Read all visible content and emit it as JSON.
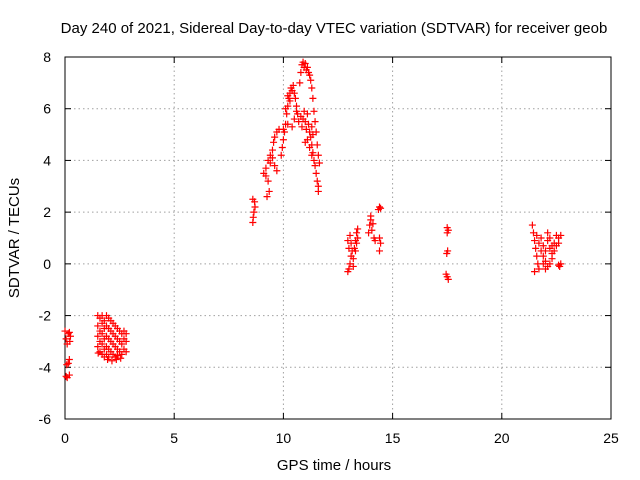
{
  "chart_data": {
    "type": "scatter",
    "title": "Day 240 of 2021, Sidereal Day-to-day VTEC variation (SDTVAR) for receiver geob",
    "xlabel": "GPS time / hours",
    "ylabel": "SDTVAR / TECUs",
    "xlim": [
      0,
      25
    ],
    "ylim": [
      -6,
      8
    ],
    "xticks": [
      0,
      5,
      10,
      15,
      20,
      25
    ],
    "yticks": [
      -6,
      -4,
      -2,
      0,
      2,
      4,
      6,
      8
    ],
    "grid": true,
    "marker": "+",
    "series": [
      {
        "color": "#ff0000",
        "points": [
          [
            0.0,
            -2.6
          ],
          [
            0.05,
            -2.9
          ],
          [
            0.1,
            -3.1
          ],
          [
            0.15,
            -2.7
          ],
          [
            0.2,
            -2.65
          ],
          [
            0.22,
            -3.0
          ],
          [
            0.25,
            -2.8
          ],
          [
            0.08,
            -3.9
          ],
          [
            0.15,
            -3.85
          ],
          [
            0.2,
            -3.7
          ],
          [
            0.05,
            -4.35
          ],
          [
            0.1,
            -4.4
          ],
          [
            0.2,
            -4.3
          ],
          [
            1.5,
            -2.0
          ],
          [
            1.5,
            -2.4
          ],
          [
            1.5,
            -2.8
          ],
          [
            1.5,
            -3.2
          ],
          [
            1.52,
            -3.45
          ],
          [
            1.6,
            -2.1
          ],
          [
            1.6,
            -2.6
          ],
          [
            1.6,
            -3.0
          ],
          [
            1.6,
            -3.4
          ],
          [
            1.7,
            -2.0
          ],
          [
            1.7,
            -2.3
          ],
          [
            1.7,
            -2.7
          ],
          [
            1.7,
            -3.1
          ],
          [
            1.7,
            -3.5
          ],
          [
            1.8,
            -2.2
          ],
          [
            1.8,
            -2.5
          ],
          [
            1.8,
            -2.9
          ],
          [
            1.8,
            -3.3
          ],
          [
            1.8,
            -3.6
          ],
          [
            1.9,
            -2.0
          ],
          [
            1.9,
            -2.4
          ],
          [
            1.9,
            -2.8
          ],
          [
            1.9,
            -3.2
          ],
          [
            1.9,
            -3.5
          ],
          [
            2.0,
            -2.1
          ],
          [
            2.0,
            -2.5
          ],
          [
            2.0,
            -2.9
          ],
          [
            2.0,
            -3.3
          ],
          [
            2.0,
            -3.6
          ],
          [
            2.1,
            -2.2
          ],
          [
            2.1,
            -2.6
          ],
          [
            2.1,
            -3.0
          ],
          [
            2.1,
            -3.4
          ],
          [
            2.2,
            -2.3
          ],
          [
            2.2,
            -2.7
          ],
          [
            2.2,
            -3.1
          ],
          [
            2.2,
            -3.5
          ],
          [
            2.3,
            -2.4
          ],
          [
            2.3,
            -2.8
          ],
          [
            2.3,
            -3.2
          ],
          [
            2.3,
            -3.6
          ],
          [
            2.4,
            -2.5
          ],
          [
            2.4,
            -2.9
          ],
          [
            2.4,
            -3.3
          ],
          [
            2.4,
            -3.55
          ],
          [
            2.5,
            -2.6
          ],
          [
            2.5,
            -3.0
          ],
          [
            2.5,
            -3.4
          ],
          [
            2.6,
            -2.7
          ],
          [
            2.6,
            -3.1
          ],
          [
            2.6,
            -3.5
          ],
          [
            2.7,
            -2.6
          ],
          [
            2.7,
            -2.9
          ],
          [
            2.7,
            -3.3
          ],
          [
            2.8,
            -2.7
          ],
          [
            2.8,
            -3.0
          ],
          [
            2.8,
            -3.4
          ],
          [
            1.95,
            -3.7
          ],
          [
            2.15,
            -3.75
          ],
          [
            2.35,
            -3.7
          ],
          [
            2.55,
            -3.65
          ],
          [
            8.6,
            1.6
          ],
          [
            8.62,
            1.8
          ],
          [
            8.65,
            2.0
          ],
          [
            8.7,
            2.2
          ],
          [
            8.68,
            2.4
          ],
          [
            8.6,
            2.5
          ],
          [
            9.1,
            3.5
          ],
          [
            9.2,
            3.4
          ],
          [
            9.3,
            3.2
          ],
          [
            9.35,
            2.8
          ],
          [
            9.25,
            2.6
          ],
          [
            9.2,
            3.7
          ],
          [
            9.3,
            4.0
          ],
          [
            9.4,
            4.2
          ],
          [
            9.5,
            4.4
          ],
          [
            9.55,
            4.7
          ],
          [
            9.6,
            4.9
          ],
          [
            9.7,
            5.1
          ],
          [
            9.8,
            5.2
          ],
          [
            9.4,
            3.9
          ],
          [
            9.5,
            4.1
          ],
          [
            9.6,
            3.8
          ],
          [
            9.7,
            3.6
          ],
          [
            9.9,
            4.2
          ],
          [
            9.95,
            4.5
          ],
          [
            10.0,
            4.8
          ],
          [
            10.05,
            5.1
          ],
          [
            10.1,
            5.4
          ],
          [
            10.15,
            5.8
          ],
          [
            10.2,
            6.1
          ],
          [
            10.25,
            6.4
          ],
          [
            10.3,
            6.6
          ],
          [
            10.35,
            6.8
          ],
          [
            10.1,
            6.0
          ],
          [
            10.2,
            6.5
          ],
          [
            10.3,
            6.3
          ],
          [
            10.4,
            6.7
          ],
          [
            10.45,
            6.9
          ],
          [
            10.5,
            6.6
          ],
          [
            10.55,
            6.4
          ],
          [
            10.6,
            6.1
          ],
          [
            10.65,
            5.8
          ],
          [
            10.7,
            5.5
          ],
          [
            10.0,
            5.2
          ],
          [
            10.2,
            5.4
          ],
          [
            10.4,
            5.3
          ],
          [
            10.5,
            5.6
          ],
          [
            10.6,
            5.9
          ],
          [
            10.75,
            7.0
          ],
          [
            10.8,
            7.4
          ],
          [
            10.85,
            7.7
          ],
          [
            10.9,
            7.8
          ],
          [
            10.95,
            7.6
          ],
          [
            11.0,
            7.75
          ],
          [
            11.05,
            7.5
          ],
          [
            11.1,
            7.6
          ],
          [
            11.15,
            7.4
          ],
          [
            11.2,
            7.3
          ],
          [
            11.25,
            7.1
          ],
          [
            11.3,
            6.8
          ],
          [
            11.35,
            6.4
          ],
          [
            10.8,
            5.7
          ],
          [
            10.85,
            5.3
          ],
          [
            10.9,
            5.6
          ],
          [
            10.95,
            5.9
          ],
          [
            11.0,
            5.5
          ],
          [
            11.05,
            5.2
          ],
          [
            11.1,
            5.8
          ],
          [
            11.15,
            5.4
          ],
          [
            11.2,
            5.1
          ],
          [
            11.25,
            4.9
          ],
          [
            11.3,
            5.3
          ],
          [
            11.35,
            5.0
          ],
          [
            11.3,
            4.6
          ],
          [
            11.35,
            4.3
          ],
          [
            11.4,
            4.0
          ],
          [
            11.45,
            3.8
          ],
          [
            11.5,
            3.5
          ],
          [
            11.55,
            3.2
          ],
          [
            11.6,
            3.0
          ],
          [
            11.6,
            2.8
          ],
          [
            11.4,
            5.9
          ],
          [
            11.45,
            5.5
          ],
          [
            11.5,
            5.1
          ],
          [
            11.55,
            4.6
          ],
          [
            11.6,
            4.2
          ],
          [
            11.65,
            3.9
          ],
          [
            11.1,
            4.8
          ],
          [
            11.2,
            4.5
          ],
          [
            11.3,
            4.2
          ],
          [
            11.0,
            4.7
          ],
          [
            12.95,
            -0.3
          ],
          [
            13.0,
            -0.2
          ],
          [
            13.05,
            0.0
          ],
          [
            13.1,
            0.3
          ],
          [
            13.0,
            0.6
          ],
          [
            12.95,
            0.9
          ],
          [
            13.05,
            1.1
          ],
          [
            13.1,
            0.8
          ],
          [
            13.15,
            0.5
          ],
          [
            13.2,
            0.2
          ],
          [
            13.25,
            0.6
          ],
          [
            13.3,
            0.9
          ],
          [
            13.35,
            1.2
          ],
          [
            13.4,
            1.35
          ],
          [
            13.3,
            0.5
          ],
          [
            13.35,
            0.8
          ],
          [
            13.4,
            1.0
          ],
          [
            13.2,
            -0.1
          ],
          [
            13.9,
            1.2
          ],
          [
            13.95,
            1.5
          ],
          [
            14.0,
            1.7
          ],
          [
            14.05,
            1.3
          ],
          [
            14.1,
            1.55
          ],
          [
            14.15,
            1.0
          ],
          [
            14.2,
            0.9
          ],
          [
            14.0,
            1.85
          ],
          [
            14.35,
            2.1
          ],
          [
            14.4,
            2.2
          ],
          [
            14.45,
            2.15
          ],
          [
            14.4,
            1.0
          ],
          [
            14.45,
            0.8
          ],
          [
            14.4,
            0.5
          ],
          [
            17.5,
            1.2
          ],
          [
            17.5,
            1.4
          ],
          [
            17.55,
            1.3
          ],
          [
            17.52,
            0.5
          ],
          [
            17.48,
            0.4
          ],
          [
            17.45,
            -0.4
          ],
          [
            17.5,
            -0.5
          ],
          [
            17.55,
            -0.6
          ],
          [
            21.4,
            1.5
          ],
          [
            21.45,
            1.2
          ],
          [
            21.5,
            0.9
          ],
          [
            21.55,
            0.6
          ],
          [
            21.6,
            0.3
          ],
          [
            21.65,
            0.0
          ],
          [
            21.7,
            -0.2
          ],
          [
            21.5,
            -0.3
          ],
          [
            21.6,
            1.1
          ],
          [
            21.7,
            0.8
          ],
          [
            21.8,
            0.5
          ],
          [
            21.9,
            0.3
          ],
          [
            22.0,
            0.1
          ],
          [
            22.1,
            -0.1
          ],
          [
            21.8,
            1.0
          ],
          [
            21.9,
            0.7
          ],
          [
            22.0,
            0.5
          ],
          [
            22.1,
            0.9
          ],
          [
            22.2,
            0.6
          ],
          [
            22.3,
            0.4
          ],
          [
            22.4,
            0.8
          ],
          [
            22.5,
            1.1
          ],
          [
            22.1,
            1.2
          ],
          [
            22.2,
            1.0
          ],
          [
            22.3,
            0.7
          ],
          [
            22.4,
            0.5
          ],
          [
            22.5,
            0.7
          ],
          [
            22.6,
            1.0
          ],
          [
            22.7,
            1.1
          ],
          [
            22.6,
            0.8
          ],
          [
            21.9,
            0.0
          ],
          [
            22.0,
            -0.2
          ],
          [
            22.2,
            0.0
          ],
          [
            22.3,
            0.2
          ],
          [
            22.6,
            -0.05
          ],
          [
            22.65,
            -0.1
          ],
          [
            22.7,
            0.0
          ]
        ]
      }
    ]
  }
}
